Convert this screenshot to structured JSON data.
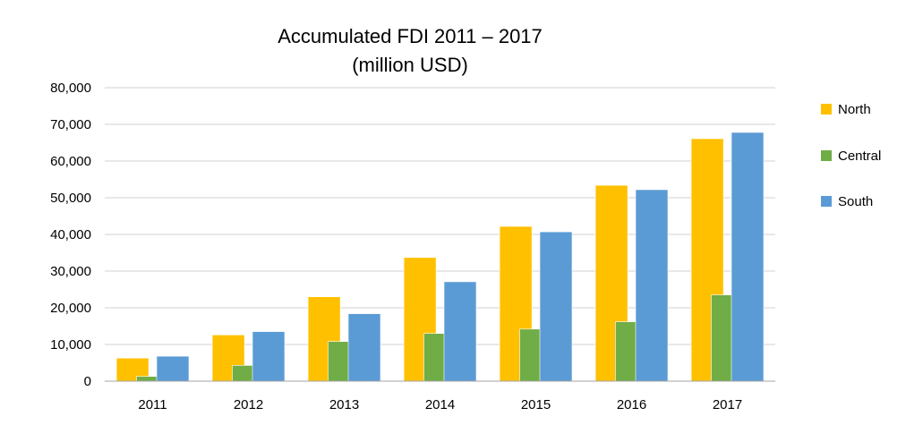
{
  "chart_data": {
    "type": "bar",
    "title": "Accumulated FDI 2011 – 2017",
    "subtitle": "(million USD)",
    "xlabel": "",
    "ylabel": "",
    "categories": [
      "2011",
      "2012",
      "2013",
      "2014",
      "2015",
      "2016",
      "2017"
    ],
    "series": [
      {
        "name": "North",
        "color": "#FFC000",
        "values": [
          6300,
          12600,
          23000,
          33700,
          42200,
          53400,
          66100
        ]
      },
      {
        "name": "Central",
        "color": "#70AD47",
        "values": [
          1300,
          4300,
          10800,
          13000,
          14200,
          16200,
          23500
        ]
      },
      {
        "name": "South",
        "color": "#5B9BD5",
        "values": [
          6800,
          13500,
          18400,
          27100,
          40700,
          52200,
          67800
        ]
      }
    ],
    "ylim": [
      0,
      80000
    ],
    "yticks": [
      0,
      10000,
      20000,
      30000,
      40000,
      50000,
      60000,
      70000,
      80000
    ],
    "ytick_labels": [
      "0",
      "10,000",
      "20,000",
      "30,000",
      "40,000",
      "50,000",
      "60,000",
      "70,000",
      "80,000"
    ],
    "grid": true,
    "legend_position": "right"
  }
}
